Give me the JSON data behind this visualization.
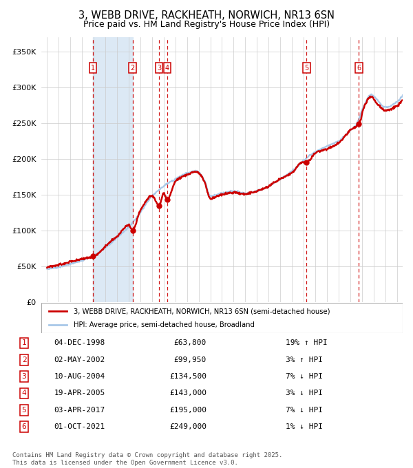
{
  "title": "3, WEBB DRIVE, RACKHEATH, NORWICH, NR13 6SN",
  "subtitle": "Price paid vs. HM Land Registry's House Price Index (HPI)",
  "title_fontsize": 10.5,
  "subtitle_fontsize": 9,
  "hpi_color": "#a8c8e8",
  "price_color": "#cc0000",
  "marker_color": "#cc0000",
  "vline_color": "#cc0000",
  "shade_color": "#dce9f5",
  "background_color": "#ffffff",
  "legend_entries": [
    "3, WEBB DRIVE, RACKHEATH, NORWICH, NR13 6SN (semi-detached house)",
    "HPI: Average price, semi-detached house, Broadland"
  ],
  "transactions": [
    {
      "num": 1,
      "date_x": 1998.92,
      "price": 63800
    },
    {
      "num": 2,
      "date_x": 2002.33,
      "price": 99950
    },
    {
      "num": 3,
      "date_x": 2004.61,
      "price": 134500
    },
    {
      "num": 4,
      "date_x": 2005.3,
      "price": 143000
    },
    {
      "num": 5,
      "date_x": 2017.25,
      "price": 195000
    },
    {
      "num": 6,
      "date_x": 2021.75,
      "price": 249000
    }
  ],
  "table_rows": [
    [
      1,
      "04-DEC-1998",
      "£63,800",
      "19% ↑ HPI"
    ],
    [
      2,
      "02-MAY-2002",
      "£99,950",
      "3% ↑ HPI"
    ],
    [
      3,
      "10-AUG-2004",
      "£134,500",
      "7% ↓ HPI"
    ],
    [
      4,
      "19-APR-2005",
      "£143,000",
      "3% ↓ HPI"
    ],
    [
      5,
      "03-APR-2017",
      "£195,000",
      "7% ↓ HPI"
    ],
    [
      6,
      "01-OCT-2021",
      "£249,000",
      "1% ↓ HPI"
    ]
  ],
  "shade_regions": [
    [
      1998.92,
      2002.33
    ]
  ],
  "ylim": [
    0,
    370000
  ],
  "xlim": [
    1994.5,
    2025.5
  ],
  "yticks": [
    0,
    50000,
    100000,
    150000,
    200000,
    250000,
    300000,
    350000
  ],
  "footer": "Contains HM Land Registry data © Crown copyright and database right 2025.\nThis data is licensed under the Open Government Licence v3.0."
}
